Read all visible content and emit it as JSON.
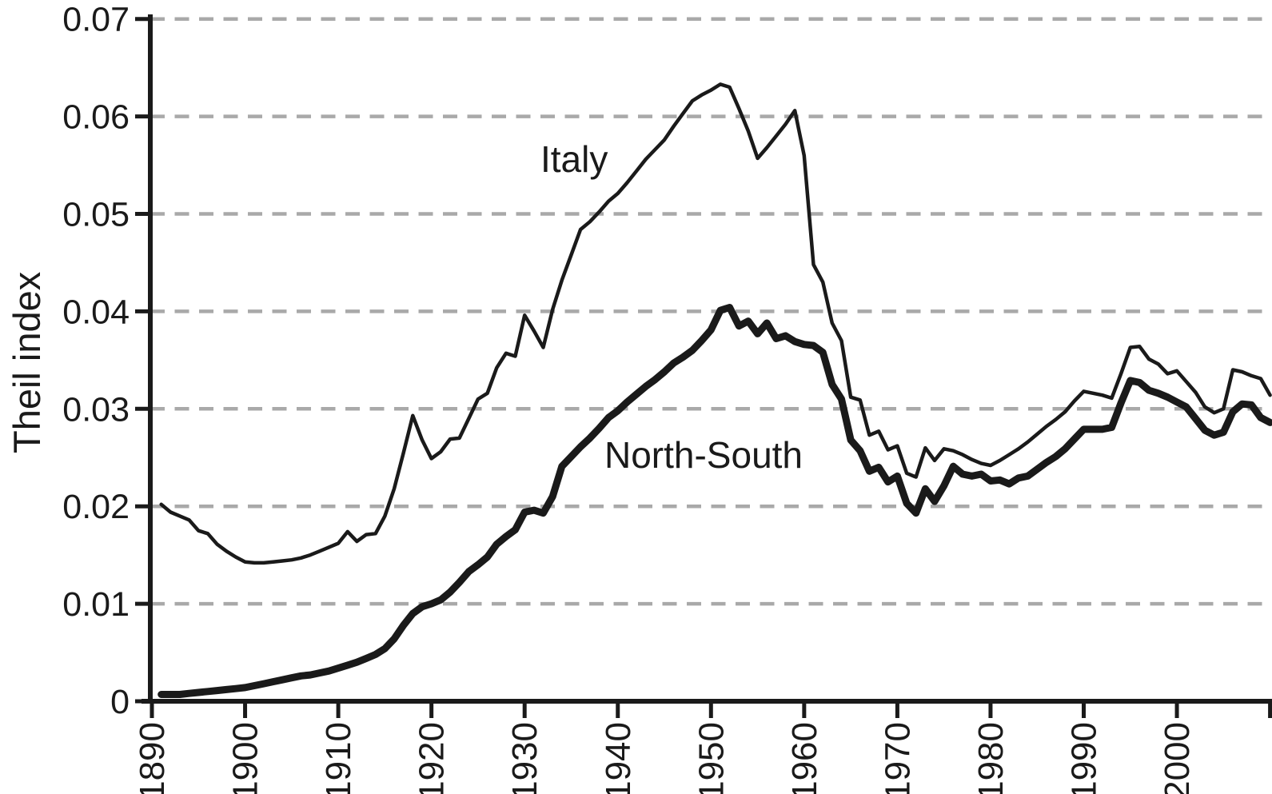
{
  "figure": {
    "ylabel": "Theil index",
    "annotations": {
      "italy": "Italy",
      "north_south": "North-South"
    }
  },
  "chart_data": {
    "type": "line",
    "title": "",
    "xlabel": "",
    "ylabel": "Theil index",
    "xlim": [
      1890,
      2011
    ],
    "ylim": [
      0,
      0.07
    ],
    "grid": "horizontal-dashed",
    "grid_color": "#a9a9a9",
    "line_color": "#1a1a1a",
    "legend_position": "inline-annotations",
    "y_ticks": [
      {
        "value": 0,
        "label": "0"
      },
      {
        "value": 0.01,
        "label": "0.01"
      },
      {
        "value": 0.02,
        "label": "0.02"
      },
      {
        "value": 0.03,
        "label": "0.03"
      },
      {
        "value": 0.04,
        "label": "0.04"
      },
      {
        "value": 0.05,
        "label": "0.05"
      },
      {
        "value": 0.06,
        "label": "0.06"
      },
      {
        "value": 0.07,
        "label": "0.07"
      }
    ],
    "x_ticks": [
      {
        "year": 1890,
        "label": "1890"
      },
      {
        "year": 1900,
        "label": "1900"
      },
      {
        "year": 1910,
        "label": "1910"
      },
      {
        "year": 1920,
        "label": "1920"
      },
      {
        "year": 1930,
        "label": "1930"
      },
      {
        "year": 1940,
        "label": "1940"
      },
      {
        "year": 1950,
        "label": "1950"
      },
      {
        "year": 1960,
        "label": "1960"
      },
      {
        "year": 1970,
        "label": "1970"
      },
      {
        "year": 1980,
        "label": "1980"
      },
      {
        "year": 1990,
        "label": "1990"
      },
      {
        "year": 2000,
        "label": "2000"
      },
      {
        "year": 2010,
        "label": ""
      }
    ],
    "years": [
      1891,
      1892,
      1893,
      1894,
      1895,
      1896,
      1897,
      1898,
      1899,
      1900,
      1901,
      1902,
      1903,
      1904,
      1905,
      1906,
      1907,
      1908,
      1909,
      1910,
      1911,
      1912,
      1913,
      1914,
      1915,
      1916,
      1917,
      1918,
      1919,
      1920,
      1921,
      1922,
      1923,
      1924,
      1925,
      1926,
      1927,
      1928,
      1929,
      1930,
      1931,
      1932,
      1933,
      1934,
      1935,
      1936,
      1937,
      1938,
      1939,
      1940,
      1941,
      1942,
      1943,
      1944,
      1945,
      1946,
      1947,
      1948,
      1949,
      1950,
      1951,
      1952,
      1953,
      1954,
      1955,
      1956,
      1957,
      1958,
      1959,
      1960,
      1961,
      1962,
      1963,
      1964,
      1965,
      1966,
      1967,
      1968,
      1969,
      1970,
      1971,
      1972,
      1973,
      1974,
      1975,
      1976,
      1977,
      1978,
      1979,
      1980,
      1981,
      1982,
      1983,
      1984,
      1985,
      1986,
      1987,
      1988,
      1989,
      1990,
      1991,
      1992,
      1993,
      1994,
      1995,
      1996,
      1997,
      1998,
      1999,
      2000,
      2001,
      2002,
      2003,
      2004,
      2005,
      2006,
      2007,
      2008,
      2009,
      2010
    ],
    "series": [
      {
        "name": "Italy",
        "line": "thin",
        "color": "#1a1a1a",
        "values": [
          0.0202,
          0.0194,
          0.019,
          0.0186,
          0.0175,
          0.0172,
          0.0161,
          0.0154,
          0.0148,
          0.0143,
          0.0142,
          0.0142,
          0.0143,
          0.0144,
          0.0145,
          0.0147,
          0.015,
          0.0154,
          0.0158,
          0.0162,
          0.0174,
          0.0164,
          0.0171,
          0.0172,
          0.019,
          0.0218,
          0.0255,
          0.0293,
          0.0268,
          0.0249,
          0.0256,
          0.0269,
          0.027,
          0.029,
          0.031,
          0.0316,
          0.0342,
          0.0357,
          0.0354,
          0.0396,
          0.038,
          0.0363,
          0.0402,
          0.0432,
          0.0458,
          0.0484,
          0.0492,
          0.0502,
          0.0513,
          0.0521,
          0.0532,
          0.0544,
          0.0556,
          0.0566,
          0.0576,
          0.059,
          0.0603,
          0.0616,
          0.0622,
          0.0627,
          0.0633,
          0.063,
          0.0608,
          0.0585,
          0.0557,
          0.0568,
          0.058,
          0.0592,
          0.0606,
          0.056,
          0.0448,
          0.043,
          0.0388,
          0.037,
          0.0312,
          0.0309,
          0.0273,
          0.0277,
          0.0258,
          0.0262,
          0.0234,
          0.023,
          0.026,
          0.0247,
          0.0259,
          0.0257,
          0.0253,
          0.0248,
          0.0244,
          0.0242,
          0.0247,
          0.0253,
          0.0259,
          0.0266,
          0.0274,
          0.0282,
          0.0289,
          0.0297,
          0.0308,
          0.0318,
          0.0316,
          0.0314,
          0.0311,
          0.0336,
          0.0363,
          0.0364,
          0.0351,
          0.0346,
          0.0336,
          0.0339,
          0.0328,
          0.0317,
          0.0302,
          0.0296,
          0.03,
          0.034,
          0.0338,
          0.0334,
          0.0331,
          0.0314
        ]
      },
      {
        "name": "North-South",
        "line": "thick",
        "color": "#1a1a1a",
        "values": [
          0.0007,
          0.0007,
          0.0007,
          0.0008,
          0.0009,
          0.001,
          0.0011,
          0.0012,
          0.0013,
          0.0014,
          0.0016,
          0.0018,
          0.002,
          0.0022,
          0.0024,
          0.0026,
          0.0027,
          0.0029,
          0.0031,
          0.0034,
          0.0037,
          0.004,
          0.0044,
          0.0048,
          0.0054,
          0.0064,
          0.0078,
          0.009,
          0.0097,
          0.01,
          0.0104,
          0.0112,
          0.0122,
          0.0133,
          0.014,
          0.0148,
          0.0161,
          0.0169,
          0.0176,
          0.0194,
          0.0196,
          0.0193,
          0.021,
          0.0241,
          0.0251,
          0.0261,
          0.027,
          0.028,
          0.0291,
          0.0298,
          0.0307,
          0.0315,
          0.0323,
          0.033,
          0.0338,
          0.0347,
          0.0353,
          0.036,
          0.037,
          0.0381,
          0.0401,
          0.0404,
          0.0385,
          0.039,
          0.0377,
          0.0388,
          0.0372,
          0.0375,
          0.0369,
          0.0366,
          0.0365,
          0.0358,
          0.0325,
          0.031,
          0.0268,
          0.0257,
          0.0236,
          0.024,
          0.0225,
          0.0231,
          0.0203,
          0.0193,
          0.0218,
          0.0205,
          0.0221,
          0.0241,
          0.0233,
          0.0231,
          0.0233,
          0.0226,
          0.0227,
          0.0223,
          0.0229,
          0.0231,
          0.0238,
          0.0245,
          0.0251,
          0.0259,
          0.0269,
          0.0279,
          0.0279,
          0.0279,
          0.0281,
          0.0306,
          0.0329,
          0.0327,
          0.0319,
          0.0316,
          0.0312,
          0.0307,
          0.0302,
          0.029,
          0.0278,
          0.0273,
          0.0276,
          0.0297,
          0.0305,
          0.0304,
          0.0291,
          0.0286
        ]
      }
    ],
    "annotations": [
      {
        "text": "Italy",
        "x": 1933,
        "y": 0.0551
      },
      {
        "text": "North-South",
        "x": 1949,
        "y": 0.0252
      }
    ]
  }
}
